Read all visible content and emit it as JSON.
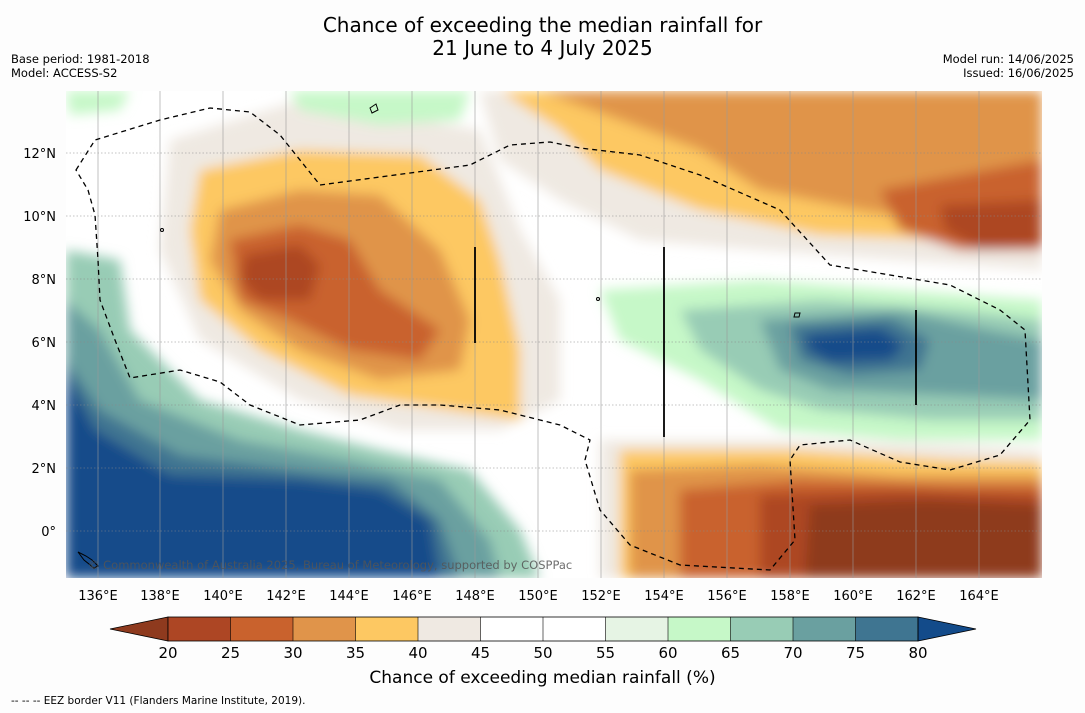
{
  "title_line1": "Chance of exceeding the median rainfall for",
  "title_line2": "21 June to 4 July 2025",
  "base_period": "Base period: 1981-2018",
  "model": "Model: ACCESS-S2",
  "model_run": "Model run: 14/06/2025",
  "issued": "Issued: 16/06/2025",
  "copyright": "© Commonwealth of Australia 2025, Bureau of Meteorology, supported by COSPPac",
  "colorbar_label": "Chance of exceeding median rainfall (%)",
  "footnote": "--  --  -- EEZ border V11 (Flanders Marine Institute, 2019).",
  "lon_labels": [
    "136°E",
    "138°E",
    "140°E",
    "142°E",
    "144°E",
    "146°E",
    "148°E",
    "150°E",
    "152°E",
    "154°E",
    "156°E",
    "158°E",
    "160°E",
    "162°E",
    "164°E"
  ],
  "lat_labels": [
    "12°N",
    "10°N",
    "8°N",
    "6°N",
    "4°N",
    "2°N",
    "0°"
  ],
  "colorbar_ticks": [
    "20",
    "25",
    "30",
    "35",
    "40",
    "45",
    "50",
    "55",
    "60",
    "65",
    "70",
    "75",
    "80"
  ],
  "colors": {
    "lt20": "#8e3a1e",
    "20_25": "#ad4624",
    "25_30": "#c9622d",
    "30_35": "#e0944a",
    "35_40": "#fdc862",
    "40_45": "#efe9e2",
    "45_50": "#ffffff",
    "50_55": "#ffffff",
    "55_60": "#e6f4e4",
    "60_65": "#c6f8c8",
    "65_70": "#98ccb5",
    "70_75": "#6aa0a0",
    "75_80": "#3f7591",
    "gt80": "#134b8a"
  },
  "map_extent": {
    "lon_min": 135,
    "lon_max": 166,
    "lat_min": -1.5,
    "lat_max": 14
  }
}
